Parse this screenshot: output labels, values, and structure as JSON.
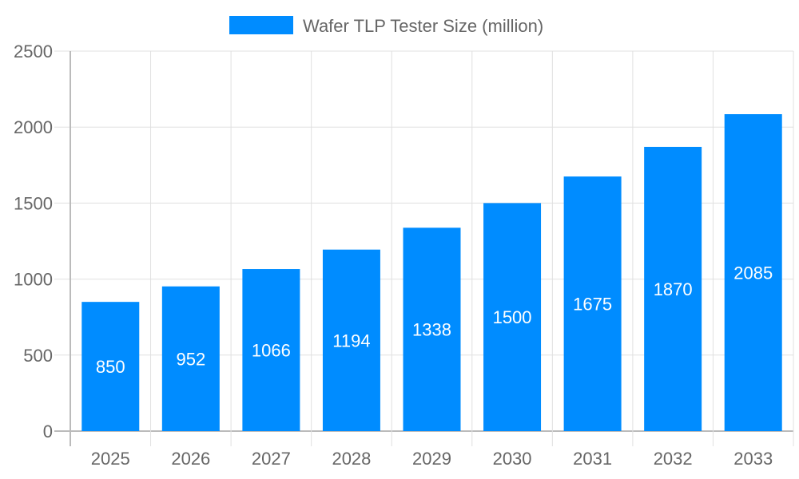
{
  "chart_data": {
    "type": "bar",
    "categories": [
      "2025",
      "2026",
      "2027",
      "2028",
      "2029",
      "2030",
      "2031",
      "2032",
      "2033"
    ],
    "series": [
      {
        "name": "Wafer TLP Tester Size (million)",
        "values": [
          850,
          952,
          1066,
          1194,
          1338,
          1500,
          1675,
          1870,
          2085
        ],
        "color": "#008cff"
      }
    ],
    "ylim": [
      0,
      2500
    ],
    "yticks": [
      "0",
      "500",
      "1000",
      "1500",
      "2000",
      "2500"
    ],
    "grid": true,
    "legend": "top",
    "data_labels": true
  }
}
